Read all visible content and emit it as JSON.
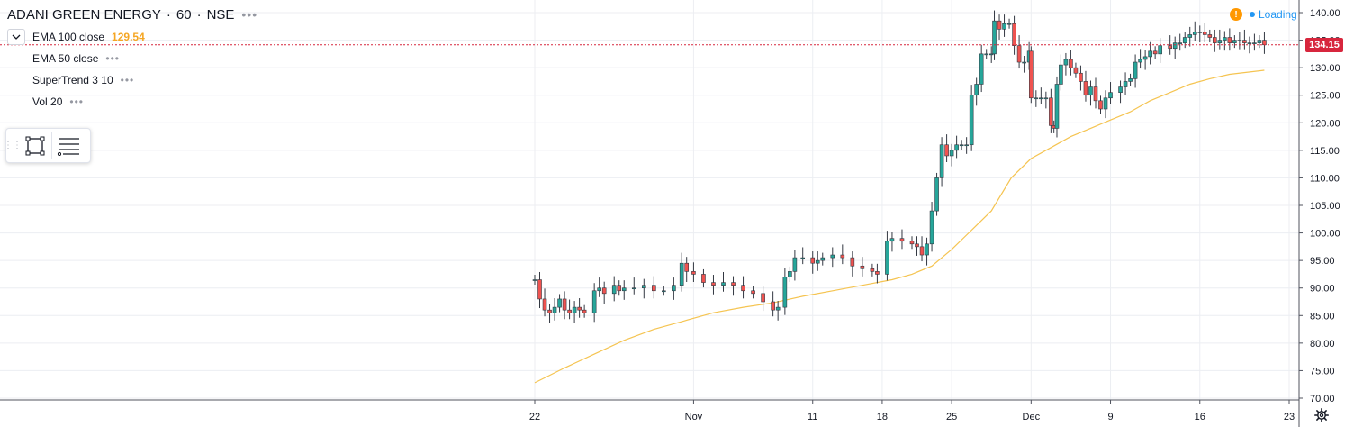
{
  "legend": {
    "symbol": "ADANI GREEN ENERGY",
    "interval": "60",
    "exchange": "NSE",
    "sep": "·",
    "more": "•••",
    "indicators": [
      {
        "label": "EMA 100 close",
        "value": "129.54",
        "value_color": "#f5a623"
      },
      {
        "label": "EMA 50 close",
        "value": ""
      },
      {
        "label": "SuperTrend 3 10",
        "value": ""
      },
      {
        "label": "Vol 20",
        "value": ""
      }
    ]
  },
  "status": {
    "loading_text": "Loading",
    "warning_icon": "warning-icon",
    "warning_glyph": "!"
  },
  "toolbar": {
    "icons": [
      "select-rectangle-icon",
      "object-tree-icon"
    ]
  },
  "settings_icon": "gear-icon",
  "colors": {
    "up": "#26a69a",
    "down": "#ef5350",
    "ema": "#f5c451",
    "grid": "#eceef2",
    "last_price": "#d7263d"
  },
  "chart_data": {
    "type": "line",
    "title": "ADANI GREEN ENERGY · 60 · NSE",
    "y_axis": {
      "ylim": [
        69.5,
        141.5
      ],
      "ticks": [
        140,
        135,
        130,
        125,
        120,
        115,
        110,
        105,
        100,
        95,
        90,
        85,
        80,
        75,
        70
      ],
      "tick_labels": [
        "140.00",
        "135.00",
        "130.00",
        "125.00",
        "120.00",
        "115.00",
        "110.00",
        "105.00",
        "100.00",
        "95.00",
        "90.00",
        "85.00",
        "80.00",
        "75.00",
        "70.00"
      ]
    },
    "x_axis": {
      "tick_labels": [
        "22",
        "Nov",
        "11",
        "18",
        "25",
        "Dec",
        "9",
        "16",
        "23"
      ],
      "tick_t": [
        0.0,
        16.0,
        28.0,
        35.0,
        42.0,
        50.0,
        58.0,
        67.0,
        76.0
      ],
      "t_range": [
        -0.3,
        76.6
      ]
    },
    "last_price": 134.15,
    "last_price_label": "134.15",
    "grid": true,
    "price_series": {
      "name": "",
      "style": "candlestick-approx",
      "points": [
        [
          0.0,
          91.5
        ],
        [
          0.5,
          88.0
        ],
        [
          1.0,
          86.0
        ],
        [
          1.5,
          85.5
        ],
        [
          2.0,
          86.5
        ],
        [
          2.5,
          88.0
        ],
        [
          3.0,
          86.0
        ],
        [
          3.5,
          85.5
        ],
        [
          4.0,
          86.5
        ],
        [
          4.5,
          86.0
        ],
        [
          5.0,
          85.5
        ],
        [
          6.0,
          89.5
        ],
        [
          6.5,
          90.0
        ],
        [
          7.0,
          89.0
        ],
        [
          8.0,
          90.5
        ],
        [
          8.5,
          89.5
        ],
        [
          9.0,
          90.0
        ],
        [
          10.0,
          90.0
        ],
        [
          11.0,
          90.5
        ],
        [
          12.0,
          89.5
        ],
        [
          13.0,
          89.5
        ],
        [
          14.0,
          90.5
        ],
        [
          14.8,
          94.5
        ],
        [
          15.3,
          93.0
        ],
        [
          16.0,
          92.5
        ],
        [
          17.0,
          91.0
        ],
        [
          18.0,
          90.5
        ],
        [
          19.0,
          91.0
        ],
        [
          20.0,
          90.5
        ],
        [
          21.0,
          89.5
        ],
        [
          22.0,
          89.0
        ],
        [
          23.0,
          87.5
        ],
        [
          24.0,
          86.0
        ],
        [
          24.5,
          86.5
        ],
        [
          25.2,
          92.0
        ],
        [
          25.7,
          93.0
        ],
        [
          26.2,
          95.5
        ],
        [
          27.0,
          95.5
        ],
        [
          28.0,
          94.5
        ],
        [
          28.5,
          95.0
        ],
        [
          29.0,
          95.5
        ],
        [
          30.0,
          96.0
        ],
        [
          31.0,
          95.5
        ],
        [
          32.0,
          94.0
        ],
        [
          33.0,
          93.5
        ],
        [
          34.0,
          93.0
        ],
        [
          34.5,
          92.5
        ],
        [
          35.5,
          98.5
        ],
        [
          36.0,
          99.0
        ],
        [
          37.0,
          98.5
        ],
        [
          38.0,
          98.0
        ],
        [
          38.5,
          97.5
        ],
        [
          39.0,
          96.0
        ],
        [
          39.5,
          98.0
        ],
        [
          40.0,
          104.0
        ],
        [
          40.5,
          110.0
        ],
        [
          41.0,
          116.0
        ],
        [
          41.5,
          114.0
        ],
        [
          42.0,
          115.0
        ],
        [
          42.5,
          116.0
        ],
        [
          43.0,
          116.0
        ],
        [
          43.5,
          116.0
        ],
        [
          44.0,
          125.0
        ],
        [
          44.5,
          127.0
        ],
        [
          45.0,
          132.5
        ],
        [
          45.5,
          132.5
        ],
        [
          46.0,
          132.5
        ],
        [
          46.3,
          138.5
        ],
        [
          46.8,
          137.0
        ],
        [
          47.3,
          138.0
        ],
        [
          47.8,
          138.0
        ],
        [
          48.3,
          134.0
        ],
        [
          48.8,
          131.0
        ],
        [
          49.3,
          131.0
        ],
        [
          49.8,
          133.0
        ],
        [
          50.0,
          124.5
        ],
        [
          50.5,
          124.5
        ],
        [
          51.0,
          124.5
        ],
        [
          51.5,
          124.5
        ],
        [
          52.0,
          119.5
        ],
        [
          52.3,
          119.0
        ],
        [
          52.6,
          127.0
        ],
        [
          53.0,
          130.5
        ],
        [
          53.5,
          131.5
        ],
        [
          54.0,
          130.0
        ],
        [
          54.5,
          129.0
        ],
        [
          55.0,
          127.5
        ],
        [
          55.5,
          125.0
        ],
        [
          56.0,
          126.5
        ],
        [
          56.5,
          124.0
        ],
        [
          57.0,
          122.5
        ],
        [
          57.5,
          124.5
        ],
        [
          58.0,
          125.5
        ],
        [
          59.0,
          126.5
        ],
        [
          59.5,
          127.5
        ],
        [
          60.0,
          128.0
        ],
        [
          60.5,
          131.0
        ],
        [
          61.0,
          131.5
        ],
        [
          61.5,
          132.0
        ],
        [
          62.0,
          133.0
        ],
        [
          62.5,
          132.5
        ],
        [
          63.0,
          134.0
        ],
        [
          64.0,
          133.5
        ],
        [
          64.5,
          134.5
        ],
        [
          65.0,
          134.5
        ],
        [
          65.5,
          135.5
        ],
        [
          66.0,
          136.0
        ],
        [
          66.5,
          136.5
        ],
        [
          67.0,
          136.5
        ],
        [
          67.5,
          136.0
        ],
        [
          68.0,
          135.5
        ],
        [
          68.5,
          134.5
        ],
        [
          69.0,
          135.0
        ],
        [
          69.5,
          135.5
        ],
        [
          70.0,
          134.5
        ],
        [
          70.5,
          135.0
        ],
        [
          71.0,
          135.0
        ],
        [
          71.5,
          134.5
        ],
        [
          72.0,
          134.5
        ],
        [
          72.5,
          134.5
        ],
        [
          73.0,
          135.0
        ],
        [
          73.5,
          134.15
        ]
      ]
    },
    "ema_series": {
      "name": "",
      "points": [
        [
          0.0,
          72.8
        ],
        [
          3.0,
          75.5
        ],
        [
          6.0,
          78.0
        ],
        [
          9.0,
          80.5
        ],
        [
          12.0,
          82.5
        ],
        [
          15.0,
          84.0
        ],
        [
          18.0,
          85.5
        ],
        [
          21.0,
          86.5
        ],
        [
          24.0,
          87.3
        ],
        [
          27.0,
          88.5
        ],
        [
          30.0,
          89.5
        ],
        [
          33.0,
          90.5
        ],
        [
          36.0,
          91.5
        ],
        [
          38.0,
          92.5
        ],
        [
          40.0,
          94.0
        ],
        [
          42.0,
          97.0
        ],
        [
          44.0,
          100.5
        ],
        [
          46.0,
          104.0
        ],
        [
          48.0,
          110.0
        ],
        [
          50.0,
          113.5
        ],
        [
          52.0,
          115.5
        ],
        [
          54.0,
          117.5
        ],
        [
          56.0,
          119.0
        ],
        [
          58.0,
          120.5
        ],
        [
          60.0,
          122.0
        ],
        [
          62.0,
          124.0
        ],
        [
          64.0,
          125.5
        ],
        [
          66.0,
          127.0
        ],
        [
          68.0,
          128.0
        ],
        [
          70.0,
          128.8
        ],
        [
          73.5,
          129.54
        ]
      ]
    }
  }
}
